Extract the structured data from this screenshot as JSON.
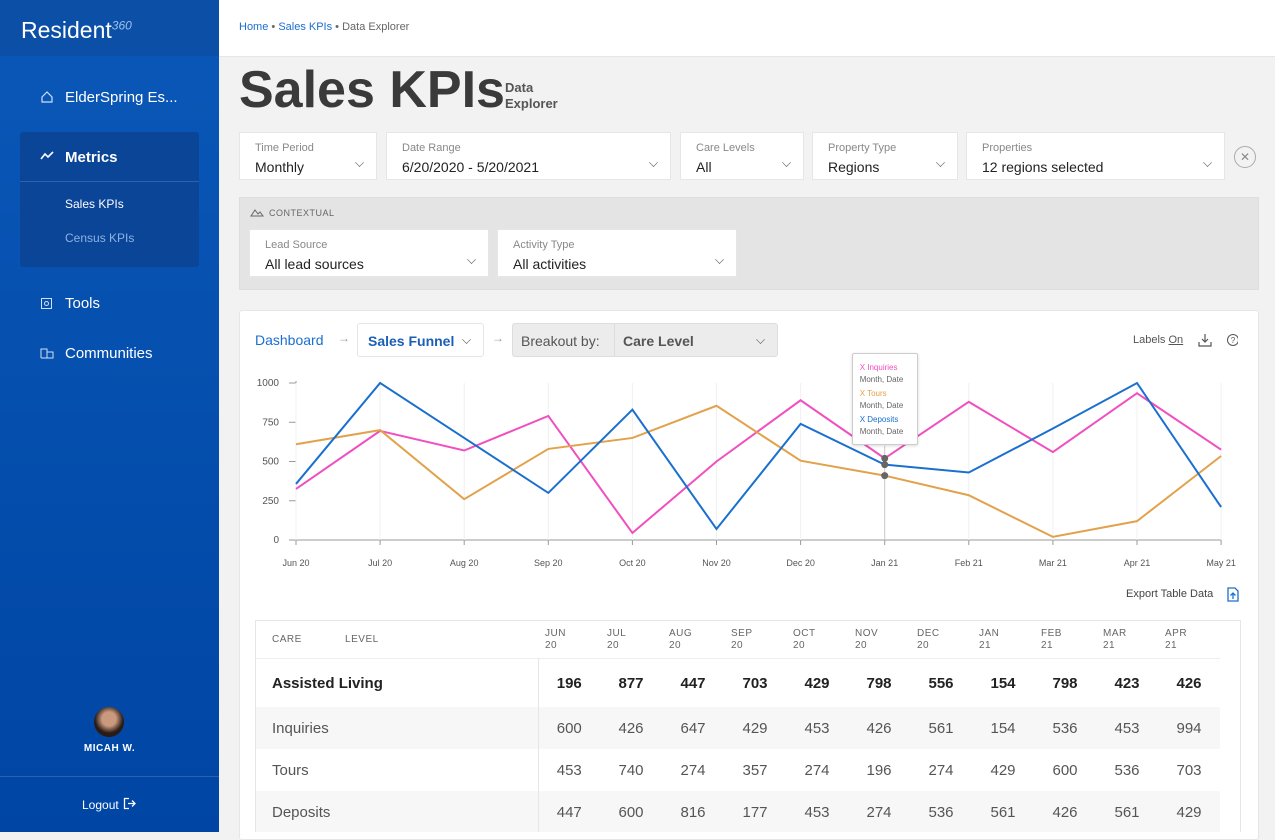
{
  "sidebar": {
    "logo": "Resident",
    "logo_sup": "360",
    "community": "ElderSpring Es...",
    "nav": [
      "Metrics",
      "Tools",
      "Communities"
    ],
    "subnav": [
      "Sales KPIs",
      "Census KPIs"
    ],
    "user": "MICAH W.",
    "logout": "Logout"
  },
  "breadcrumb": [
    "Home",
    "Sales KPIs",
    "Data Explorer"
  ],
  "header": {
    "title": "Sales KPIs",
    "subtitle": "Data Explorer"
  },
  "filters": [
    {
      "label": "Time Period",
      "value": "Monthly"
    },
    {
      "label": "Date Range",
      "value": "6/20/2020  -  5/20/2021"
    },
    {
      "label": "Care Levels",
      "value": "All"
    },
    {
      "label": "Property Type",
      "value": "Regions"
    },
    {
      "label": "Properties",
      "value": "12 regions selected"
    }
  ],
  "contextual": {
    "title": "CONTEXTUAL",
    "filters": [
      {
        "label": "Lead Source",
        "value": "All lead sources"
      },
      {
        "label": "Activity Type",
        "value": "All activities"
      }
    ]
  },
  "toolbar": {
    "dashboard": "Dashboard",
    "funnel": "Sales Funnel",
    "breakout_label": "Breakout by:",
    "breakout_value": "Care Level",
    "labels": "Labels",
    "labels_state": "On",
    "export": "Export Table Data"
  },
  "chart": {
    "type": "line",
    "categories": [
      "Jun 20",
      "Jul 20",
      "Aug 20",
      "Sep 20",
      "Oct 20",
      "Nov 20",
      "Dec 20",
      "Jan 21",
      "Feb 21",
      "Mar 21",
      "Apr 21",
      "May 21"
    ],
    "series": [
      {
        "name": "X Inquiries",
        "color": "#f14fbf",
        "values": [
          325,
          695,
          570,
          790,
          45,
          500,
          890,
          520,
          880,
          560,
          935,
          575
        ]
      },
      {
        "name": "X Tours",
        "color": "#e1a24b",
        "values": [
          610,
          700,
          260,
          580,
          650,
          855,
          505,
          410,
          285,
          20,
          120,
          535
        ]
      },
      {
        "name": "X Deposits",
        "color": "#1a6fcf",
        "values": [
          357,
          1000,
          650,
          300,
          830,
          70,
          740,
          480,
          430,
          710,
          1000,
          210
        ]
      }
    ],
    "ylim": [
      0,
      1000
    ],
    "yticks": [
      0,
      250,
      500,
      750,
      1000
    ],
    "tooltip": {
      "index": 7,
      "sublabel": "Month, Date"
    }
  },
  "table": {
    "header": [
      "CARE LEVEL",
      "JUN 20",
      "JUL 20",
      "AUG 20",
      "SEP 20",
      "OCT 20",
      "NOV 20",
      "DEC 20",
      "JAN 21",
      "FEB 21",
      "MAR 21",
      "APR 21"
    ],
    "rows": [
      [
        "Assisted Living",
        196,
        877,
        447,
        703,
        429,
        798,
        556,
        154,
        798,
        423,
        426
      ],
      [
        "Inquiries",
        600,
        426,
        647,
        429,
        453,
        426,
        561,
        154,
        536,
        453,
        994
      ],
      [
        "Tours",
        453,
        740,
        274,
        357,
        274,
        196,
        274,
        429,
        600,
        536,
        703
      ],
      [
        "Deposits",
        447,
        600,
        816,
        177,
        453,
        274,
        536,
        561,
        426,
        561,
        429
      ]
    ]
  }
}
